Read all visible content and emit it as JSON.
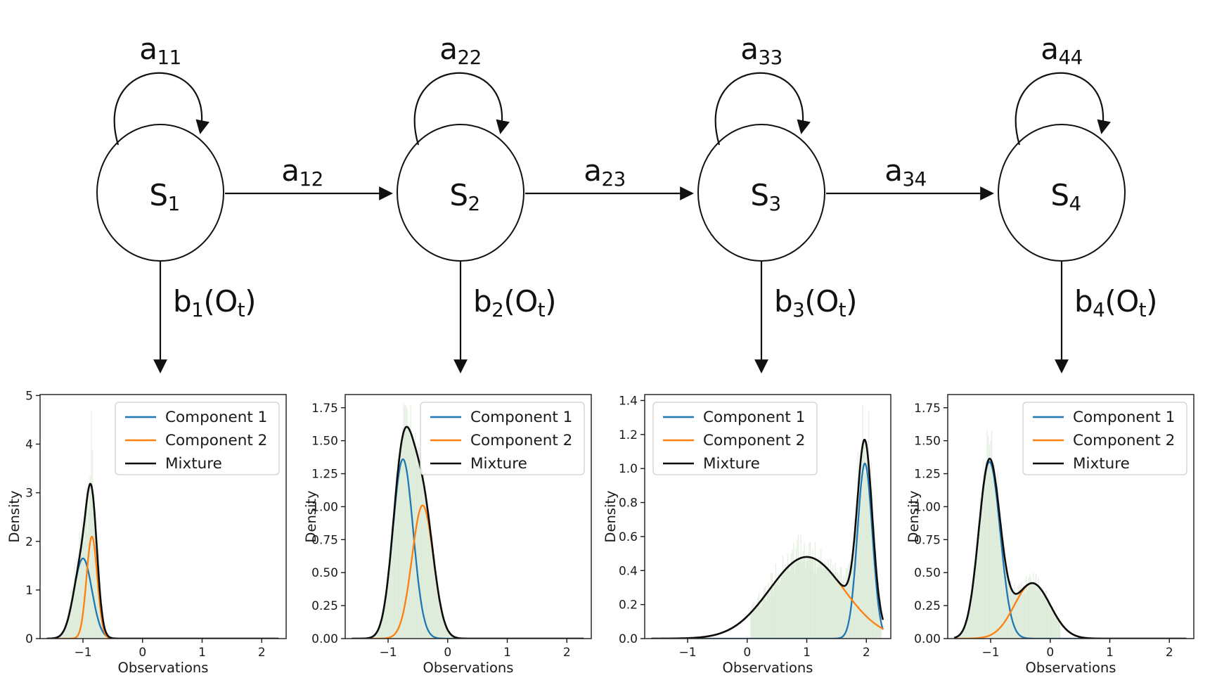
{
  "diagram": {
    "states": [
      {
        "label": {
          "base": "S",
          "sub": "1"
        },
        "self_loop": {
          "base": "a",
          "sub": "11"
        },
        "emission": {
          "base": "b",
          "sub": "1",
          "mid": "(O",
          "sub2": "t",
          "end": ")"
        }
      },
      {
        "label": {
          "base": "S",
          "sub": "2"
        },
        "self_loop": {
          "base": "a",
          "sub": "22"
        },
        "emission": {
          "base": "b",
          "sub": "2",
          "mid": "(O",
          "sub2": "t",
          "end": ")"
        }
      },
      {
        "label": {
          "base": "S",
          "sub": "3"
        },
        "self_loop": {
          "base": "a",
          "sub": "33"
        },
        "emission": {
          "base": "b",
          "sub": "3",
          "mid": "(O",
          "sub2": "t",
          "end": ")"
        }
      },
      {
        "label": {
          "base": "S",
          "sub": "4"
        },
        "self_loop": {
          "base": "a",
          "sub": "44"
        },
        "emission": {
          "base": "b",
          "sub": "4",
          "mid": "(O",
          "sub2": "t",
          "end": ")"
        }
      }
    ],
    "transitions": [
      {
        "base": "a",
        "sub": "12"
      },
      {
        "base": "a",
        "sub": "23"
      },
      {
        "base": "a",
        "sub": "34"
      }
    ]
  },
  "chart_data": [
    {
      "type": "line",
      "title": "",
      "xlabel": "Observations",
      "ylabel": "Density",
      "xlim": [
        -1.72,
        2.41
      ],
      "ylim": [
        0,
        5.02
      ],
      "curve_x_range": [
        -1.6,
        2.28
      ],
      "grid": false,
      "legend_loc": "upper right",
      "xticks": [
        {
          "v": -1,
          "label": "−1"
        },
        {
          "v": 0,
          "label": "0"
        },
        {
          "v": 1,
          "label": "1"
        },
        {
          "v": 2,
          "label": "2"
        }
      ],
      "yticks": [
        {
          "v": 0,
          "label": "0"
        },
        {
          "v": 1,
          "label": "1"
        },
        {
          "v": 2,
          "label": "2"
        },
        {
          "v": 3,
          "label": "3"
        },
        {
          "v": 4,
          "label": "4"
        },
        {
          "v": 5,
          "label": "5"
        }
      ],
      "series": [
        {
          "name": "Component 1",
          "color": "#1f77b4",
          "gaussian": {
            "mean": -1.0,
            "std": 0.15,
            "peak": 1.65
          }
        },
        {
          "name": "Component 2",
          "color": "#ff7f0e",
          "gaussian": {
            "mean": -0.85,
            "std": 0.09,
            "peak": 2.1
          }
        },
        {
          "name": "Mixture",
          "color": "#0d0d0d",
          "sum_of": [
            0,
            1
          ]
        }
      ],
      "histogram": {
        "x_range": [
          -1.44,
          -0.52
        ],
        "noise_amp": 0.45,
        "fill_color": "#e7f1e3",
        "bar_color": "#cde3c8"
      }
    },
    {
      "type": "line",
      "title": "",
      "xlabel": "Observations",
      "ylabel": "Density",
      "xlim": [
        -1.72,
        2.41
      ],
      "ylim": [
        0,
        1.85
      ],
      "curve_x_range": [
        -1.6,
        2.28
      ],
      "grid": false,
      "legend_loc": "upper right",
      "xticks": [
        {
          "v": -1,
          "label": "−1"
        },
        {
          "v": 0,
          "label": "0"
        },
        {
          "v": 1,
          "label": "1"
        },
        {
          "v": 2,
          "label": "2"
        }
      ],
      "yticks": [
        {
          "v": 0,
          "label": "0.00"
        },
        {
          "v": 0.25,
          "label": "0.25"
        },
        {
          "v": 0.5,
          "label": "0.50"
        },
        {
          "v": 0.75,
          "label": "0.75"
        },
        {
          "v": 1.0,
          "label": "1.00"
        },
        {
          "v": 1.25,
          "label": "1.25"
        },
        {
          "v": 1.5,
          "label": "1.50"
        },
        {
          "v": 1.75,
          "label": "1.75"
        }
      ],
      "series": [
        {
          "name": "Component 1",
          "color": "#1f77b4",
          "gaussian": {
            "mean": -0.75,
            "std": 0.17,
            "peak": 1.36
          }
        },
        {
          "name": "Component 2",
          "color": "#ff7f0e",
          "gaussian": {
            "mean": -0.42,
            "std": 0.18,
            "peak": 1.01
          }
        },
        {
          "name": "Mixture",
          "color": "#0d0d0d",
          "sum_of": [
            0,
            1
          ]
        }
      ],
      "histogram": {
        "x_range": [
          -1.28,
          0.28
        ],
        "noise_amp": 0.13,
        "fill_color": "#e7f1e3",
        "bar_color": "#cde3c8"
      }
    },
    {
      "type": "line",
      "title": "",
      "xlabel": "Observations",
      "ylabel": "Density",
      "xlim": [
        -1.72,
        2.41
      ],
      "ylim": [
        0,
        1.435
      ],
      "curve_x_range": [
        -1.6,
        2.28
      ],
      "grid": false,
      "legend_loc": "upper left",
      "xticks": [
        {
          "v": -1,
          "label": "−1"
        },
        {
          "v": 0,
          "label": "0"
        },
        {
          "v": 1,
          "label": "1"
        },
        {
          "v": 2,
          "label": "2"
        }
      ],
      "yticks": [
        {
          "v": 0,
          "label": "0.0"
        },
        {
          "v": 0.2,
          "label": "0.2"
        },
        {
          "v": 0.4,
          "label": "0.4"
        },
        {
          "v": 0.6,
          "label": "0.6"
        },
        {
          "v": 0.8,
          "label": "0.8"
        },
        {
          "v": 1.0,
          "label": "1.0"
        },
        {
          "v": 1.2,
          "label": "1.2"
        },
        {
          "v": 1.4,
          "label": "1.4"
        }
      ],
      "series": [
        {
          "name": "Component 1",
          "color": "#1f77b4",
          "gaussian": {
            "mean": 1.975,
            "std": 0.125,
            "peak": 1.03
          }
        },
        {
          "name": "Component 2",
          "color": "#ff7f0e",
          "gaussian": {
            "mean": 1.0,
            "std": 0.62,
            "peak": 0.48
          }
        },
        {
          "name": "Mixture",
          "color": "#0d0d0d",
          "sum_of": [
            0,
            1
          ]
        }
      ],
      "histogram": {
        "x_range": [
          0.06,
          2.26
        ],
        "noise_amp": 0.3,
        "fill_color": "#e7f1e3",
        "bar_color": "#cde3c8"
      }
    },
    {
      "type": "line",
      "title": "",
      "xlabel": "Observations",
      "ylabel": "Density",
      "xlim": [
        -1.72,
        2.41
      ],
      "ylim": [
        0,
        1.85
      ],
      "curve_x_range": [
        -1.6,
        2.28
      ],
      "grid": false,
      "legend_loc": "upper right",
      "xticks": [
        {
          "v": -1,
          "label": "−1"
        },
        {
          "v": 0,
          "label": "0"
        },
        {
          "v": 1,
          "label": "1"
        },
        {
          "v": 2,
          "label": "2"
        }
      ],
      "yticks": [
        {
          "v": 0,
          "label": "0.00"
        },
        {
          "v": 0.25,
          "label": "0.25"
        },
        {
          "v": 0.5,
          "label": "0.50"
        },
        {
          "v": 0.75,
          "label": "0.75"
        },
        {
          "v": 1.0,
          "label": "1.00"
        },
        {
          "v": 1.25,
          "label": "1.25"
        },
        {
          "v": 1.5,
          "label": "1.50"
        },
        {
          "v": 1.75,
          "label": "1.75"
        }
      ],
      "series": [
        {
          "name": "Component 1",
          "color": "#1f77b4",
          "gaussian": {
            "mean": -1.02,
            "std": 0.18,
            "peak": 1.34
          }
        },
        {
          "name": "Component 2",
          "color": "#ff7f0e",
          "gaussian": {
            "mean": -0.3,
            "std": 0.3,
            "peak": 0.42
          }
        },
        {
          "name": "Mixture",
          "color": "#0d0d0d",
          "sum_of": [
            0,
            1
          ]
        }
      ],
      "histogram": {
        "x_range": [
          -1.54,
          0.18
        ],
        "noise_amp": 0.2,
        "fill_color": "#e7f1e3",
        "bar_color": "#cde3c8"
      }
    }
  ]
}
